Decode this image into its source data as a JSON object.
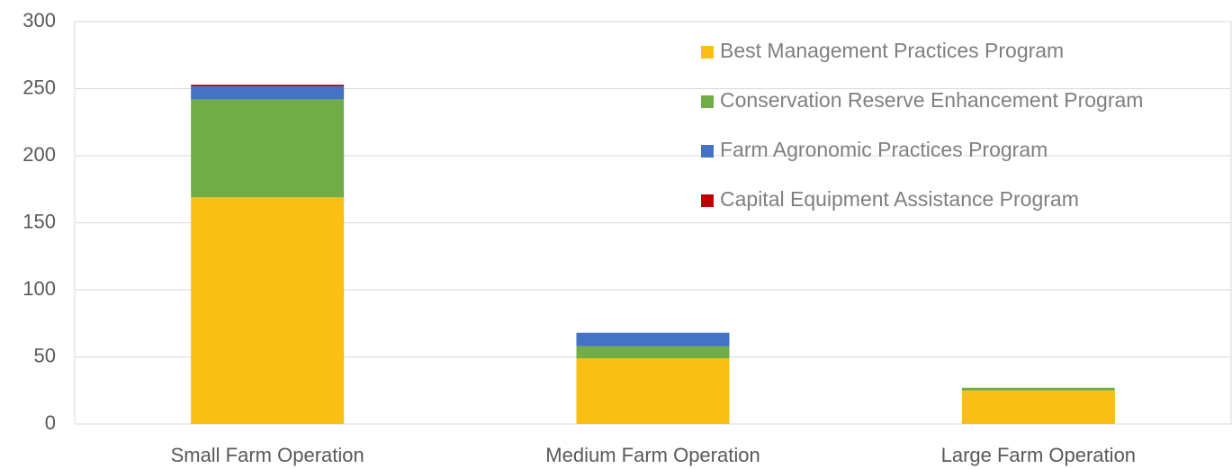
{
  "chart_data": {
    "type": "stacked_bar",
    "categories": [
      "Small Farm Operation",
      "Medium Farm Operation",
      "Large Farm Operation"
    ],
    "series": [
      {
        "name": "Best Management Practices Program",
        "color": "#fbbe14",
        "values": [
          169,
          49,
          25
        ]
      },
      {
        "name": "Conservation Reserve Enhancement Program",
        "color": "#70ad47",
        "values": [
          73,
          9,
          2
        ]
      },
      {
        "name": "Farm Agronomic Practices Program",
        "color": "#4472c4",
        "values": [
          10,
          10,
          0
        ]
      },
      {
        "name": "Capital Equipment Assistance Program",
        "color": "#c00000",
        "values": [
          1,
          0,
          0
        ]
      }
    ],
    "ylim": [
      0,
      300
    ],
    "yticks": [
      0,
      50,
      100,
      150,
      200,
      250,
      300
    ],
    "grid": true,
    "legend": "top-right"
  }
}
